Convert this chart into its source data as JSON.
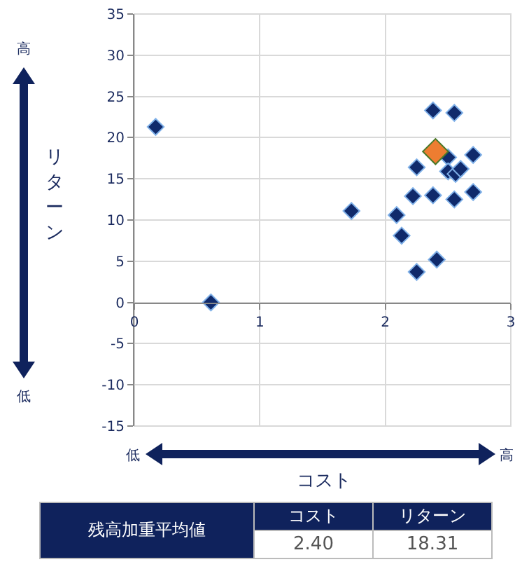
{
  "chart_data": {
    "type": "scatter",
    "xlabel": "コスト",
    "ylabel": "リターン",
    "xlim": [
      0,
      3
    ],
    "xticks": [
      0,
      1,
      2,
      3
    ],
    "ylim": [
      -15,
      35
    ],
    "yticks": [
      -15,
      -10,
      -5,
      0,
      5,
      10,
      15,
      20,
      25,
      30,
      35
    ],
    "grid": true,
    "marker": "diamond",
    "series": [
      {
        "color": "#102a6b",
        "x": [
          0.17,
          0.61,
          1.73,
          2.09,
          2.13,
          2.22,
          2.25,
          2.25,
          2.38,
          2.38,
          2.41,
          2.5,
          2.5,
          2.55,
          2.55,
          2.56,
          2.6,
          2.7,
          2.7
        ],
        "values": [
          21.3,
          0,
          11.1,
          10.6,
          8.1,
          12.9,
          16.4,
          3.7,
          23.3,
          13.0,
          5.2,
          17.6,
          15.9,
          23.0,
          12.5,
          15.6,
          16.2,
          17.9,
          13.4
        ]
      },
      {
        "color": "#ed7d31",
        "x": [
          2.4
        ],
        "values": [
          18.31
        ]
      }
    ],
    "annotations": [
      "高",
      "低",
      "低",
      "高",
      "残高加重平均値",
      "コスト",
      "リターン",
      "2.40",
      "18.31"
    ]
  }
}
